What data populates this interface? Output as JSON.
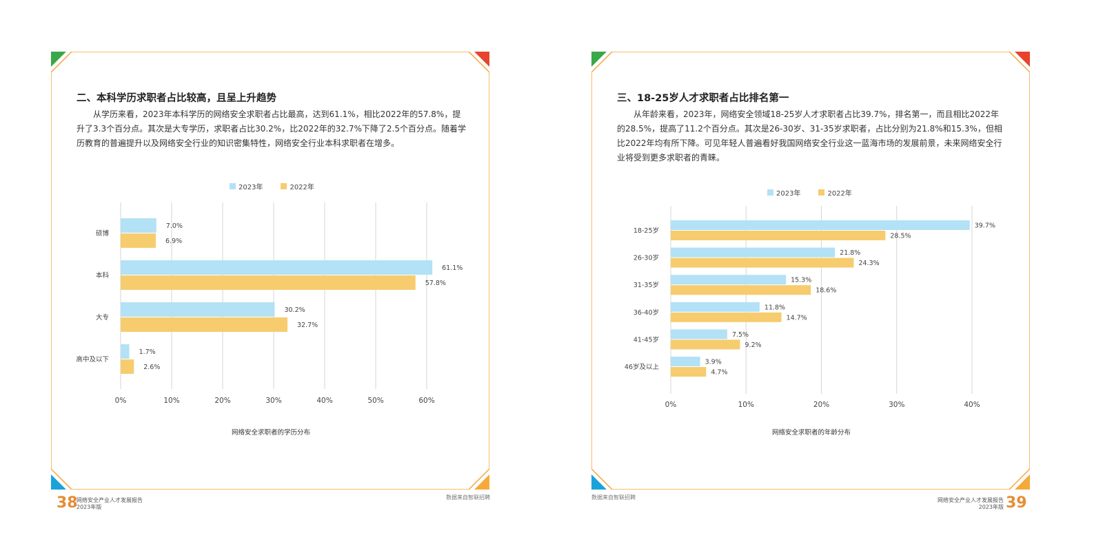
{
  "colors": {
    "accent": "#f5a53c",
    "series_2023": "#b3e1f6",
    "series_2022": "#f6cc6e",
    "page_number": "#e58d35",
    "green": "#3aa748",
    "red": "#e8432f",
    "blue": "#1aa3d9",
    "orange": "#f6a93b"
  },
  "left_page": {
    "heading": "二、本科学历求职者占比较高，且呈上升趋势",
    "body": "从学历来看，2023年本科学历的网络安全求职者占比最高，达到61.1%，相比2022年的57.8%，提升了3.3个百分点。其次是大专学历，求职者占比30.2%，比2022年的32.7%下降了2.5个百分点。随着学历教育的普遍提升以及网络安全行业的知识密集特性，网络安全行业本科求职者在增多。",
    "caption": "网络安全求职者的学历分布",
    "source": "数据来自智联招聘",
    "page_number": "38",
    "report_title": "网络安全产业人才发展报告",
    "report_edition": "2023年版"
  },
  "right_page": {
    "heading": "三、18-25岁人才求职者占比排名第一",
    "body": "从年龄来看，2023年，网络安全领域18-25岁人才求职者占比39.7%，排名第一，而且相比2022年的28.5%，提高了11.2个百分点。其次是26-30岁、31-35岁求职者，占比分别为21.8%和15.3%，但相比2022年均有所下降。可见年轻人普遍看好我国网络安全行业这一蓝海市场的发展前景，未来网络安全行业将受到更多求职者的青睐。",
    "caption": "网络安全求职者的年龄分布",
    "source": "数据来自智联招聘",
    "page_number": "39",
    "report_title": "网络安全产业人才发展报告",
    "report_edition": "2023年版"
  },
  "chart_data": [
    {
      "type": "bar",
      "orientation": "horizontal",
      "title": "网络安全求职者的学历分布",
      "categories": [
        "硕博",
        "本科",
        "大专",
        "高中及以下"
      ],
      "series": [
        {
          "name": "2023年",
          "values": [
            7.0,
            61.1,
            30.2,
            1.7
          ],
          "labels": [
            "7.0%",
            "61.1%",
            "30.2%",
            "1.7%"
          ]
        },
        {
          "name": "2022年",
          "values": [
            6.9,
            57.8,
            32.7,
            2.6
          ],
          "labels": [
            "6.9%",
            "57.8%",
            "32.7%",
            "2.6%"
          ]
        }
      ],
      "xlim": [
        0,
        60
      ],
      "xticks": [
        0,
        10,
        20,
        30,
        40,
        50,
        60
      ],
      "xtick_labels": [
        "0%",
        "10%",
        "20%",
        "30%",
        "40%",
        "50%",
        "60%"
      ],
      "grid": true,
      "legend_position": "top"
    },
    {
      "type": "bar",
      "orientation": "horizontal",
      "title": "网络安全求职者的年龄分布",
      "categories": [
        "18-25岁",
        "26-30岁",
        "31-35岁",
        "36-40岁",
        "41-45岁",
        "46岁及以上"
      ],
      "series": [
        {
          "name": "2023年",
          "values": [
            39.7,
            21.8,
            15.3,
            11.8,
            7.5,
            3.9
          ],
          "labels": [
            "39.7%",
            "21.8%",
            "15.3%",
            "11.8%",
            "7.5%",
            "3.9%"
          ]
        },
        {
          "name": "2022年",
          "values": [
            28.5,
            24.3,
            18.6,
            14.7,
            9.2,
            4.7
          ],
          "labels": [
            "28.5%",
            "24.3%",
            "18.6%",
            "14.7%",
            "9.2%",
            "4.7%"
          ]
        }
      ],
      "xlim": [
        0,
        40
      ],
      "xticks": [
        0,
        10,
        20,
        30,
        40
      ],
      "xtick_labels": [
        "0%",
        "10%",
        "20%",
        "30%",
        "40%"
      ],
      "grid": true,
      "legend_position": "top"
    }
  ]
}
